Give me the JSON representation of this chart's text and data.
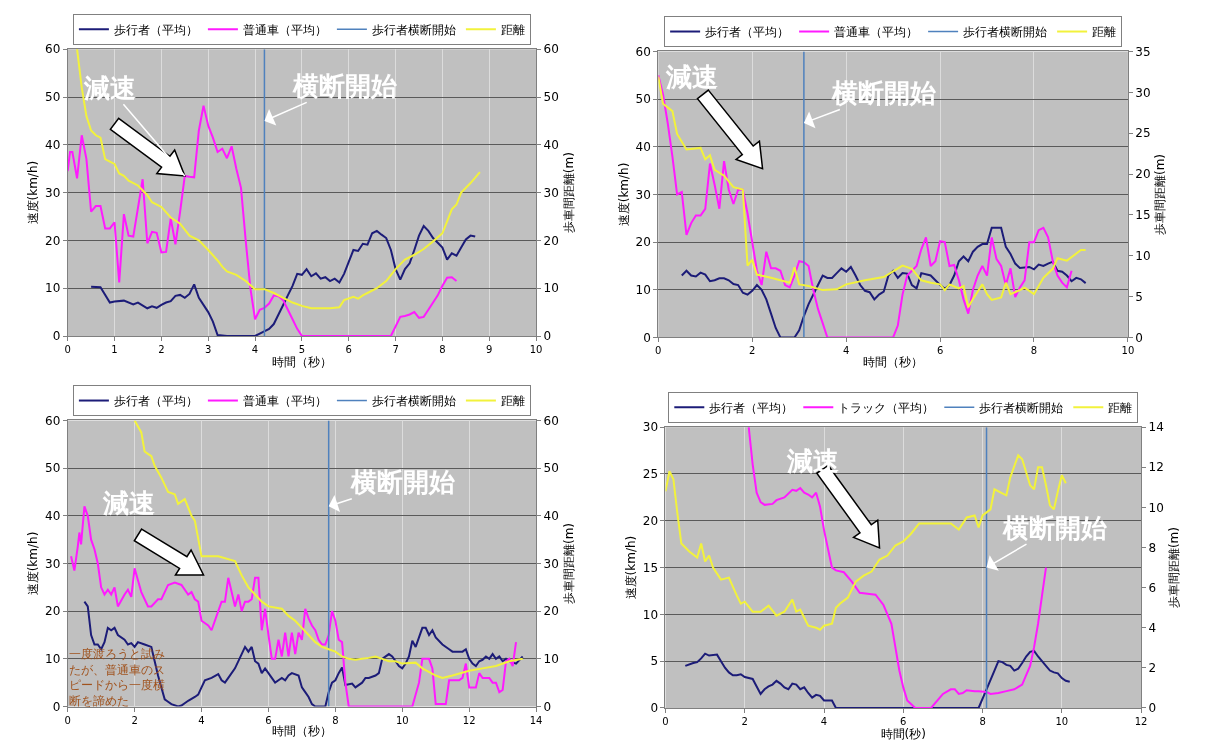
{
  "chart_data": [
    {
      "type": "line",
      "xlabel": "時間（秒）",
      "ylabel": "速度(km/h)",
      "y2label": "歩車間距離(m)",
      "xlim": [
        0,
        10
      ],
      "xticks": [
        0,
        1,
        2,
        3,
        4,
        5,
        6,
        7,
        8,
        9,
        10
      ],
      "ylim": [
        0,
        60
      ],
      "yticks": [
        0,
        10,
        20,
        30,
        40,
        50,
        60
      ],
      "y2lim": [
        0,
        60
      ],
      "y2ticks": [
        0,
        10,
        20,
        30,
        40,
        50,
        60
      ],
      "grid": true,
      "legend": "top",
      "marker": "none",
      "line_style": "solid",
      "series": [
        {
          "name": "歩行者（平均）",
          "color": "#1c1c78",
          "x": [
            0.5,
            0.7,
            0.9,
            1.0,
            1.2,
            1.4,
            1.5,
            1.7,
            1.8,
            1.9,
            2.0,
            2.1,
            2.2,
            2.3,
            2.4,
            2.5,
            2.6,
            2.7,
            2.8,
            3.0,
            3.1,
            3.2,
            3.4,
            4.0,
            4.1,
            4.3,
            4.4,
            4.5,
            4.6,
            4.7,
            4.8,
            4.9,
            5.0,
            5.1,
            5.2,
            5.3,
            5.4,
            5.5,
            5.6,
            5.7,
            5.8,
            5.9,
            6.0,
            6.1,
            6.2,
            6.3,
            6.4,
            6.5,
            6.6,
            6.7,
            6.8,
            6.9,
            7.0,
            7.1,
            7.2,
            7.3,
            7.4,
            7.5,
            7.6,
            7.7,
            7.8,
            7.9,
            8.0,
            8.1,
            8.2,
            8.3,
            8.4,
            8.5,
            8.6,
            8.7
          ],
          "values": [
            10.3,
            10.2,
            7,
            7.2,
            7.4,
            6.6,
            7,
            5.8,
            6.2,
            5.9,
            6.5,
            7,
            7.3,
            8.4,
            8.6,
            8,
            8.8,
            10.8,
            8,
            5,
            3,
            0.2,
            0,
            0,
            0.5,
            1.5,
            2.5,
            4.5,
            6.5,
            8.5,
            10.5,
            13,
            12.8,
            14,
            12.5,
            13.1,
            12,
            12.3,
            11.5,
            12,
            11.2,
            13,
            15.5,
            18,
            17.8,
            19.3,
            19.1,
            21.5,
            22,
            21.2,
            20.5,
            18,
            14,
            11.8,
            14,
            15.2,
            18,
            21,
            23,
            22,
            20.5,
            19.5,
            18.5,
            16,
            17.3,
            16.8,
            18.5,
            20.2,
            21,
            20.8
          ]
        },
        {
          "name": "普通車（平均）",
          "color": "#ff1aff",
          "x": [
            0,
            0.05,
            0.1,
            0.2,
            0.3,
            0.4,
            0.5,
            0.6,
            0.7,
            0.8,
            0.9,
            1.0,
            1.1,
            1.2,
            1.3,
            1.4,
            1.6,
            1.7,
            1.8,
            1.9,
            2.0,
            2.1,
            2.2,
            2.3,
            2.4,
            2.5,
            2.6,
            2.7,
            2.8,
            2.9,
            3.0,
            3.1,
            3.2,
            3.3,
            3.4,
            3.5,
            3.6,
            3.7,
            3.8,
            3.9,
            4.0,
            4.1,
            4.2,
            4.3,
            4.4,
            4.5,
            4.6,
            4.7,
            4.8,
            4.9,
            5.0,
            6.9,
            7.1,
            7.2,
            7.3,
            7.4,
            7.5,
            7.6,
            7.7,
            7.9,
            8.0,
            8.1,
            8.2,
            8.3
          ],
          "values": [
            34.5,
            38.5,
            38.5,
            33,
            42,
            37,
            26,
            27.2,
            27.2,
            22.5,
            22.5,
            23.8,
            11.2,
            25.5,
            21,
            20.8,
            32.8,
            19.4,
            21.8,
            21.6,
            17.5,
            17.6,
            24.6,
            19.2,
            26,
            33.5,
            33.3,
            33.2,
            43,
            48.2,
            44,
            41.5,
            38.5,
            39.2,
            37.2,
            39.7,
            35,
            31,
            20,
            10,
            3.5,
            5.5,
            5.9,
            6.8,
            8.5,
            8.3,
            7.5,
            5.5,
            3.5,
            1.5,
            0,
            0,
            4,
            4.2,
            4.5,
            5,
            3.8,
            4,
            5.5,
            8.5,
            10.5,
            12.2,
            12.3,
            11.5
          ]
        },
        {
          "name": "距離",
          "color": "#f2f23c",
          "axis": "y2",
          "x": [
            0.2,
            0.3,
            0.4,
            0.5,
            0.6,
            0.7,
            0.8,
            0.9,
            1.0,
            1.1,
            1.2,
            1.3,
            1.5,
            1.7,
            1.8,
            2.0,
            2.2,
            2.4,
            2.6,
            2.8,
            3.0,
            3.2,
            3.3,
            3.4,
            3.6,
            3.8,
            4.0,
            4.2,
            4.4,
            4.6,
            4.8,
            5.0,
            5.2,
            5.6,
            5.8,
            5.9,
            6.1,
            6.2,
            6.3,
            6.4,
            6.6,
            6.8,
            7.0,
            7.2,
            7.4,
            7.6,
            7.8,
            8.0,
            8.1,
            8.2,
            8.3,
            8.4,
            8.6,
            8.8
          ],
          "values": [
            60,
            52,
            46,
            43,
            42,
            41.5,
            37,
            36.5,
            36,
            34,
            33.5,
            32.5,
            31.5,
            29.5,
            28,
            27,
            24.8,
            23.5,
            21,
            20,
            18,
            15.8,
            14.5,
            13.5,
            12.8,
            11.5,
            9.8,
            9.8,
            9,
            8,
            7,
            6.3,
            5.8,
            5.8,
            6,
            7.5,
            8.2,
            7.8,
            8.5,
            9,
            10,
            11.5,
            14,
            16,
            17,
            18.2,
            19.8,
            21.5,
            24,
            26.5,
            27.5,
            30,
            32,
            34.3
          ]
        }
      ],
      "ref_lines": [
        {
          "axis": "x",
          "value": 4.2,
          "label": "歩行者横断開始",
          "color": "#4f81bd"
        }
      ],
      "annotations": [
        {
          "text": "減速",
          "x": 2.5,
          "y": 33.5
        },
        {
          "text": "横断開始",
          "x": 4.2,
          "y": 45
        }
      ]
    },
    {
      "type": "line",
      "xlabel": "時間（秒）",
      "ylabel": "速度(km/h)",
      "y2label": "歩車間距離(m)",
      "xlim": [
        0,
        10
      ],
      "xticks": [
        0,
        2,
        4,
        6,
        8,
        10
      ],
      "ylim": [
        0,
        60
      ],
      "yticks": [
        0,
        10,
        20,
        30,
        40,
        50,
        60
      ],
      "y2lim": [
        0,
        35
      ],
      "y2ticks": [
        0,
        5,
        10,
        15,
        20,
        25,
        30,
        35
      ],
      "grid": true,
      "legend": "top",
      "marker": "none",
      "line_style": "solid",
      "series": [
        {
          "name": "歩行者（平均）",
          "color": "#1c1c78",
          "x": [
            0.5,
            0.6,
            0.7,
            0.8,
            0.9,
            1.0,
            1.1,
            1.2,
            1.3,
            1.4,
            1.5,
            1.6,
            1.7,
            1.8,
            1.9,
            2.0,
            2.1,
            2.2,
            2.3,
            2.4,
            2.5,
            2.6,
            2.9,
            3.0,
            3.1,
            3.2,
            3.4,
            3.5,
            3.6,
            3.7,
            3.8,
            3.9,
            4.0,
            4.1,
            4.2,
            4.3,
            4.4,
            4.5,
            4.6,
            4.7,
            4.8,
            4.9,
            5.0,
            5.1,
            5.2,
            5.3,
            5.4,
            5.5,
            5.6,
            5.8,
            5.9,
            6.0,
            6.1,
            6.2,
            6.3,
            6.4,
            6.5,
            6.6,
            6.7,
            6.8,
            6.9,
            7.0,
            7.1,
            7.3,
            7.4,
            7.5,
            7.6,
            7.7,
            7.9,
            8.0,
            8.1,
            8.2,
            8.3,
            8.4,
            8.5,
            8.6,
            8.7,
            8.8,
            8.9,
            9.0,
            9.1
          ],
          "values": [
            13,
            14,
            13,
            12.8,
            13.6,
            13.2,
            11.8,
            12,
            12.4,
            12.4,
            12,
            11.2,
            11,
            9.4,
            9,
            9.8,
            11,
            10,
            8,
            5,
            2,
            0,
            0,
            1.5,
            4.5,
            7,
            11,
            13,
            12.5,
            12.5,
            13.5,
            14.5,
            13.8,
            14.8,
            13,
            11,
            9.8,
            9.5,
            8,
            9,
            9.6,
            13,
            14,
            12.5,
            13.5,
            13.4,
            11,
            10.3,
            13.5,
            13,
            12,
            11,
            10.2,
            11,
            13,
            16,
            17,
            16,
            18,
            19,
            19.6,
            19.6,
            23,
            23,
            19,
            17.5,
            15.5,
            14.6,
            14.8,
            14.3,
            15.3,
            15,
            15.5,
            15.9,
            14,
            13.8,
            13,
            11.8,
            12.5,
            12.2,
            11.4
          ]
        },
        {
          "name": "普通車（平均）",
          "color": "#ff1aff",
          "x": [
            0,
            0.1,
            0.2,
            0.3,
            0.4,
            0.5,
            0.6,
            0.7,
            0.8,
            0.9,
            1.0,
            1.1,
            1.2,
            1.3,
            1.4,
            1.5,
            1.6,
            1.7,
            1.8,
            1.9,
            2.0,
            2.1,
            2.2,
            2.3,
            2.4,
            2.5,
            2.6,
            2.7,
            2.8,
            2.9,
            3.0,
            3.1,
            3.2,
            3.3,
            3.4,
            3.5,
            3.6,
            5.0,
            5.1,
            5.2,
            5.3,
            5.4,
            5.5,
            5.6,
            5.7,
            5.8,
            5.9,
            6.0,
            6.1,
            6.2,
            6.3,
            6.4,
            6.5,
            6.6,
            6.7,
            6.8,
            6.9,
            7.0,
            7.1,
            7.2,
            7.3,
            7.4,
            7.5,
            7.6,
            7.7,
            7.8,
            7.9,
            8.0,
            8.1,
            8.2,
            8.3,
            8.4,
            8.5,
            8.6,
            8.7,
            8.8
          ],
          "values": [
            55,
            51,
            45,
            38,
            30,
            30.5,
            21.5,
            24,
            25.6,
            25.6,
            27,
            36.5,
            32,
            27,
            37,
            31,
            28,
            31,
            31,
            26,
            20,
            14,
            11,
            18,
            14.5,
            14.5,
            14,
            11,
            10.5,
            13,
            16,
            15.8,
            15,
            10,
            6,
            3,
            0,
            0,
            2.5,
            9,
            13,
            14,
            15,
            18.5,
            21,
            15,
            16,
            20.2,
            20,
            15,
            15.2,
            12,
            8,
            5,
            10,
            13,
            15,
            13,
            21,
            16.5,
            15,
            11,
            14.5,
            8.5,
            10.5,
            12,
            20,
            20,
            22.5,
            23,
            21,
            16,
            13,
            11.5,
            10.5,
            14
          ]
        },
        {
          "name": "距離",
          "color": "#f2f23c",
          "axis": "y2",
          "x": [
            0.0,
            0.1,
            0.3,
            0.4,
            0.6,
            0.9,
            1.0,
            1.1,
            1.2,
            1.4,
            1.6,
            1.8,
            1.9,
            2.0,
            2.1,
            2.4,
            2.8,
            2.9,
            3.0,
            3.2,
            3.5,
            3.8,
            4.0,
            4.4,
            4.8,
            5.0,
            5.2,
            5.4,
            5.6,
            5.8,
            6.0,
            6.1,
            6.2,
            6.4,
            6.5,
            6.6,
            6.7,
            6.9,
            7.0,
            7.1,
            7.3,
            7.4,
            7.5,
            7.7,
            7.8,
            8.0,
            8.2,
            8.4,
            8.5,
            8.7,
            9.0,
            9.1
          ],
          "values": [
            31.9,
            28.6,
            27.7,
            24.9,
            23,
            23.2,
            21.8,
            22.3,
            20.5,
            19.8,
            18.4,
            18.1,
            8.8,
            9.5,
            7.7,
            7.3,
            6.7,
            8.6,
            6.5,
            6.3,
            5.8,
            5.9,
            6.5,
            7,
            7.4,
            8.1,
            8.8,
            8.4,
            7,
            6.7,
            6.5,
            5.8,
            6.5,
            6,
            6.3,
            3.7,
            4.7,
            6.5,
            5.3,
            4.6,
            4.9,
            6.7,
            5.3,
            5.8,
            6.1,
            5.3,
            7.3,
            8.4,
            9.7,
            9.4,
            10.7,
            10.7
          ]
        }
      ],
      "ref_lines": [
        {
          "axis": "x",
          "value": 3.1,
          "label": "歩行者横断開始",
          "color": "#4f81bd"
        }
      ],
      "annotations": [
        "減速",
        {
          "text": "横断開始",
          "x": 3.1,
          "y": 45
        }
      ]
    },
    {
      "type": "line",
      "xlabel": "時間（秒）",
      "ylabel": "速度(km/h)",
      "y2label": "歩車間距離(m)",
      "xlim": [
        0,
        14
      ],
      "xticks": [
        0,
        2,
        4,
        6,
        8,
        10,
        12,
        14
      ],
      "ylim": [
        0,
        60
      ],
      "yticks": [
        0,
        10,
        20,
        30,
        40,
        50,
        60
      ],
      "y2lim": [
        0,
        60
      ],
      "y2ticks": [
        0,
        10,
        20,
        30,
        40,
        50,
        60
      ],
      "grid": true,
      "legend": "top",
      "marker": "none",
      "line_style": "solid",
      "series": [
        {
          "name": "歩行者（平均）",
          "color": "#1c1c78",
          "x": [
            0.5,
            0.6,
            0.7,
            0.8,
            0.9,
            1.0,
            1.1,
            1.2,
            1.3,
            1.4,
            1.5,
            1.7,
            1.8,
            1.9,
            2.0,
            2.1,
            2.3,
            2.5,
            2.6,
            2.7,
            2.8,
            2.9,
            3.0,
            3.1,
            3.3,
            3.4,
            3.6,
            3.8,
            3.9,
            4.0,
            4.1,
            4.3,
            4.5,
            4.6,
            4.7,
            4.8,
            5.0,
            5.2,
            5.3,
            5.4,
            5.5,
            5.6,
            5.7,
            5.8,
            5.9,
            6.0,
            6.1,
            6.2,
            6.3,
            6.4,
            6.5,
            6.6,
            6.7,
            6.9,
            7.0,
            7.1,
            7.2,
            7.3,
            7.4,
            7.7,
            7.8,
            7.9,
            8.0,
            8.1,
            8.2,
            8.3,
            8.5,
            8.6,
            8.8,
            8.9,
            9.0,
            9.2,
            9.3,
            9.4,
            9.6,
            9.7,
            9.9,
            10.0,
            10.1,
            10.2,
            10.3,
            10.4,
            10.5,
            10.6,
            10.7,
            10.8,
            10.9,
            11.0,
            11.2,
            11.4,
            11.5,
            11.8,
            11.9,
            12.0,
            12.1,
            12.2,
            12.3,
            12.4,
            12.5,
            12.6,
            12.7,
            12.8,
            12.9,
            13.0,
            13.1,
            13.2,
            13.4,
            13.6
          ],
          "values": [
            22,
            21,
            15,
            13,
            13,
            12,
            13.5,
            16.5,
            16,
            16.5,
            15,
            14,
            13,
            13.3,
            12.5,
            13.5,
            13,
            12.5,
            9.5,
            6.5,
            4,
            1.5,
            1,
            0.5,
            0,
            0.2,
            1.2,
            2,
            2.5,
            4,
            5.5,
            6,
            6.8,
            5.5,
            5,
            6,
            8,
            11,
            12.5,
            11.5,
            12.5,
            9.5,
            9,
            7,
            8,
            7,
            6,
            5,
            5.5,
            6,
            5.5,
            6.5,
            7,
            6.5,
            4,
            3,
            2,
            0.5,
            0,
            0,
            3,
            5,
            5.5,
            7,
            8.2,
            4.5,
            4.8,
            4,
            5,
            6,
            6,
            6.5,
            7,
            10,
            11,
            10.5,
            8.5,
            8,
            9,
            10.5,
            13.8,
            12.5,
            14.5,
            16.5,
            16.5,
            15,
            16,
            14.5,
            13,
            12,
            11.5,
            11.5,
            12,
            10,
            9,
            8.5,
            9.5,
            9.8,
            10.5,
            10,
            11,
            10,
            10.5,
            9.5,
            10,
            9.5,
            9,
            10.5
          ]
        },
        {
          "name": "普通車（平均）",
          "color": "#ff1aff",
          "x": [
            0.1,
            0.2,
            0.3,
            0.35,
            0.4,
            0.5,
            0.6,
            0.7,
            0.8,
            0.9,
            1.0,
            1.1,
            1.2,
            1.3,
            1.4,
            1.5,
            1.7,
            1.8,
            1.9,
            2.0,
            2.1,
            2.2,
            2.4,
            2.5,
            2.7,
            2.8,
            2.9,
            3.0,
            3.2,
            3.4,
            3.6,
            3.7,
            3.8,
            3.9,
            4.0,
            4.2,
            4.3,
            4.5,
            4.6,
            4.7,
            4.8,
            4.9,
            5.0,
            5.1,
            5.2,
            5.3,
            5.4,
            5.5,
            5.6,
            5.7,
            5.8,
            5.9,
            6.0,
            6.1,
            6.2,
            6.3,
            6.4,
            6.5,
            6.6,
            6.7,
            6.8,
            6.9,
            7.0,
            7.1,
            7.2,
            7.3,
            7.4,
            7.5,
            7.6,
            7.7,
            7.8,
            7.9,
            8.0,
            8.1,
            8.2,
            8.3,
            8.4,
            10.3,
            10.5,
            10.6,
            10.8,
            10.9,
            11.0,
            11.3,
            11.4,
            11.7,
            11.8,
            11.9,
            12.0,
            12.2,
            12.3,
            12.4,
            12.6,
            12.7,
            12.8,
            12.9,
            13.0,
            13.1,
            13.2,
            13.3,
            13.4
          ],
          "values": [
            31.5,
            28.5,
            33.5,
            36.5,
            34,
            42,
            40,
            35,
            33,
            30,
            25,
            23.5,
            24.5,
            23.5,
            25,
            21,
            23.5,
            24.5,
            23,
            29,
            26.5,
            24,
            21,
            21,
            22.5,
            22.5,
            24,
            25.5,
            26,
            25.5,
            23.5,
            24,
            22.5,
            22,
            18,
            17,
            16,
            20,
            22,
            22,
            27,
            24,
            21,
            23.5,
            20,
            22,
            22,
            22.5,
            27,
            27,
            16,
            20.5,
            15,
            10,
            10,
            14,
            10.5,
            15.5,
            10.5,
            15.5,
            11,
            15.5,
            14,
            20.5,
            18.5,
            17,
            16,
            14,
            13,
            13,
            15,
            20,
            18,
            14,
            13.5,
            5,
            0,
            0,
            5,
            10,
            10,
            8,
            0.5,
            0.5,
            5.5,
            5.5,
            6,
            9,
            4,
            4,
            7,
            6,
            6,
            5,
            5,
            3,
            3.5,
            9.5,
            10,
            8.5,
            13.5
          ]
        },
        {
          "name": "距離",
          "color": "#f2f23c",
          "axis": "y2",
          "x": [
            2.0,
            2.2,
            2.3,
            2.4,
            2.5,
            2.6,
            2.8,
            3.0,
            3.2,
            3.3,
            3.5,
            3.7,
            3.8,
            4.0,
            4.5,
            5.0,
            5.2,
            5.4,
            5.6,
            5.8,
            6.0,
            6.4,
            6.6,
            6.8,
            7.0,
            7.2,
            7.4,
            7.6,
            7.8,
            8.0,
            8.2,
            8.4,
            8.6,
            8.8,
            9.0,
            9.2,
            9.4,
            9.6,
            9.8,
            10.0,
            10.4,
            10.6,
            11.0,
            11.2,
            11.5,
            12.0,
            12.4,
            12.8,
            13.2,
            13.6
          ],
          "values": [
            60,
            57.5,
            53.5,
            53,
            52.5,
            50.5,
            48,
            45,
            44.5,
            42.5,
            43.5,
            40,
            39,
            31.5,
            31.5,
            30.5,
            27.5,
            25,
            23.5,
            22,
            21,
            20.5,
            19,
            18,
            16.5,
            15,
            13.5,
            12.5,
            12,
            11.5,
            10.5,
            10,
            9.8,
            10,
            10.2,
            10.5,
            10,
            9.5,
            9.5,
            9,
            9.2,
            8,
            6.5,
            6,
            6.5,
            7.5,
            8,
            8.5,
            9.5,
            10
          ]
        }
      ],
      "ref_lines": [
        {
          "axis": "x",
          "value": 7.8,
          "label": "歩行者横断開始",
          "color": "#4f81bd"
        }
      ],
      "annotations": [
        "減速",
        {
          "text": "横断開始",
          "x": 7.8,
          "y": 42
        },
        {
          "text": "一度渡ろうと試みたが、普通車のスピードから一度横断を諦めた",
          "x": 2.9,
          "y": 0.5
        }
      ]
    },
    {
      "type": "line",
      "xlabel": "時間(秒)",
      "ylabel": "速度(km/h)",
      "y2label": "歩車間距離(m)",
      "xlim": [
        0,
        12
      ],
      "xticks": [
        0,
        2,
        4,
        6,
        8,
        10,
        12
      ],
      "ylim": [
        0,
        30
      ],
      "yticks": [
        0,
        5,
        10,
        15,
        20,
        25,
        30
      ],
      "y2lim": [
        0,
        14
      ],
      "y2ticks": [
        0,
        2,
        4,
        6,
        8,
        10,
        12,
        14
      ],
      "grid": true,
      "legend": "top",
      "marker": "none",
      "line_style": "solid",
      "series": [
        {
          "name": "歩行者（平均）",
          "color": "#1c1c78",
          "x": [
            0.5,
            0.7,
            0.8,
            0.9,
            1.0,
            1.1,
            1.3,
            1.4,
            1.5,
            1.6,
            1.7,
            1.8,
            1.9,
            2.0,
            2.2,
            2.3,
            2.4,
            2.5,
            2.6,
            2.7,
            2.8,
            2.9,
            3.0,
            3.1,
            3.2,
            3.3,
            3.4,
            3.5,
            3.6,
            3.7,
            3.8,
            3.9,
            4.0,
            4.2,
            4.3,
            7.9,
            8.1,
            8.3,
            8.4,
            8.5,
            8.6,
            8.7,
            8.8,
            8.9,
            9.0,
            9.1,
            9.2,
            9.3,
            9.4,
            9.5,
            9.6,
            9.7,
            9.8,
            9.9,
            10.0,
            10.1,
            10.2
          ],
          "values": [
            4.5,
            4.8,
            4.9,
            5.3,
            5.8,
            5.6,
            5.7,
            5,
            4.3,
            3.8,
            3.5,
            3.5,
            3.6,
            3.3,
            3.1,
            2.3,
            1.5,
            2,
            2.3,
            2.5,
            2.9,
            2.6,
            2.2,
            2,
            2.6,
            2.5,
            2,
            2.2,
            1.6,
            1.1,
            1.4,
            1.3,
            0.8,
            0.8,
            0,
            0,
            2,
            4,
            5,
            4.9,
            4.6,
            4.5,
            4,
            4.2,
            4.8,
            5.5,
            6,
            6.1,
            5.5,
            5,
            4.5,
            4,
            3.8,
            3.7,
            3.2,
            2.9,
            2.8
          ]
        },
        {
          "name": "トラック（平均）",
          "color": "#ff1aff",
          "x": [
            2.1,
            2.2,
            2.3,
            2.4,
            2.5,
            2.7,
            2.8,
            3.0,
            3.2,
            3.3,
            3.4,
            3.5,
            3.6,
            3.7,
            3.8,
            3.9,
            4.0,
            4.1,
            4.2,
            4.3,
            4.5,
            4.7,
            4.9,
            5.1,
            5.3,
            5.5,
            5.7,
            5.8,
            5.9,
            6.0,
            6.1,
            6.3,
            6.7,
            6.9,
            7.0,
            7.2,
            7.3,
            7.4,
            7.5,
            7.6,
            7.8,
            7.9,
            8.1,
            8.2,
            8.4,
            8.6,
            8.8,
            9.0,
            9.1,
            9.2,
            9.3,
            9.4,
            9.5,
            9.6
          ],
          "values": [
            30,
            26,
            23,
            22,
            21.7,
            21.8,
            22.2,
            22.5,
            23.3,
            23.2,
            23.5,
            23,
            22.8,
            22.5,
            23,
            21.5,
            19,
            17,
            15,
            14.7,
            14.5,
            13.5,
            12.3,
            12.2,
            12.1,
            11,
            9,
            6.5,
            4,
            2.2,
            0.8,
            0,
            0,
            1,
            1.5,
            2,
            2,
            1.5,
            1.6,
            1.9,
            1.8,
            1.8,
            1.7,
            1.5,
            1.6,
            1.8,
            2,
            2.5,
            3.5,
            4.5,
            6.5,
            9,
            12,
            15
          ]
        },
        {
          "name": "距離",
          "color": "#f2f23c",
          "axis": "y2",
          "x": [
            0.0,
            0.1,
            0.2,
            0.3,
            0.4,
            0.6,
            0.8,
            0.9,
            1.0,
            1.1,
            1.2,
            1.4,
            1.6,
            1.8,
            1.9,
            2.0,
            2.2,
            2.4,
            2.6,
            2.8,
            3.0,
            3.2,
            3.3,
            3.4,
            3.6,
            3.8,
            3.9,
            4.0,
            4.2,
            4.3,
            4.4,
            4.6,
            4.8,
            5.0,
            5.2,
            5.4,
            5.6,
            5.8,
            6.0,
            6.2,
            6.4,
            6.8,
            7.2,
            7.4,
            7.6,
            7.8,
            7.9,
            8.0,
            8.2,
            8.3,
            8.5,
            8.6,
            8.7,
            8.9,
            9.0,
            9.2,
            9.3,
            9.4,
            9.5,
            9.6,
            9.7,
            9.8,
            9.9,
            10.0,
            10.1
          ],
          "values": [
            10.8,
            11.8,
            11.4,
            9.7,
            8.2,
            7.8,
            7.5,
            8.2,
            7.3,
            7.6,
            7,
            6.4,
            6.5,
            5.6,
            5.2,
            5.3,
            4.8,
            4.8,
            5.1,
            4.6,
            4.8,
            5.4,
            4.8,
            4.9,
            4.1,
            4,
            3.9,
            4.1,
            4.2,
            5,
            5.2,
            5.5,
            6.3,
            6.6,
            6.8,
            7.4,
            7.6,
            8.1,
            8.3,
            8.7,
            9.2,
            9.2,
            9.2,
            8.9,
            9.5,
            9.6,
            9,
            9.6,
            9.9,
            10.9,
            10.7,
            10.6,
            11.5,
            12.6,
            12.4,
            11.1,
            10.9,
            12,
            12,
            11.1,
            10.1,
            9.9,
            10.8,
            11.6,
            11.2
          ]
        }
      ],
      "ref_lines": [
        {
          "axis": "x",
          "value": 8.1,
          "label": "歩行者横断開始",
          "color": "#4f81bd"
        }
      ],
      "annotations": [
        "減速",
        {
          "text": "横断開始",
          "x": 8.1,
          "y": 15
        }
      ]
    }
  ]
}
